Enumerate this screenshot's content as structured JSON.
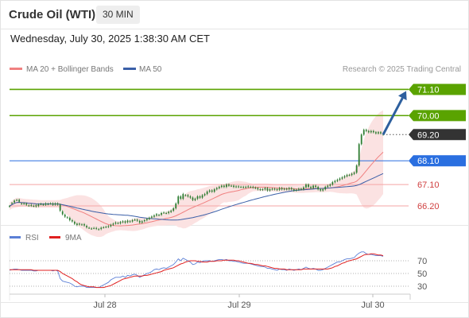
{
  "header": {
    "title": "Crude Oil (WTI)",
    "timeframe": "30 MIN"
  },
  "timestamp": "Wednesday, July 30, 2025 1:38:30 AM CET",
  "legend": {
    "ma20": "MA 20 + Bollinger Bands",
    "ma50": "MA 50",
    "ma20_color": "#f08080",
    "ma50_color": "#3a5fa8"
  },
  "source": "Research © 2025 Trading Central",
  "colors": {
    "resistance": "#5aa300",
    "support_line": "#f5a5a5",
    "support_text": "#d04040",
    "pivot": "#2a6fe0",
    "last": "#333333",
    "arrow": "#2d5f9e",
    "candle": "#2e7d32",
    "band": "#fbe2e2"
  },
  "chart_data": [
    {
      "type": "candlestick",
      "title": "Crude Oil (WTI)",
      "x_ticks": [
        "Jul 28",
        "Jul 29",
        "Jul 30"
      ],
      "ylim": [
        65.7,
        71.45
      ],
      "levels": [
        {
          "value": 71.1,
          "label": "71.10",
          "kind": "resistance"
        },
        {
          "value": 70.0,
          "label": "70.00",
          "kind": "resistance"
        },
        {
          "value": 69.2,
          "label": "69.20",
          "kind": "last"
        },
        {
          "value": 68.1,
          "label": "68.10",
          "kind": "pivot"
        },
        {
          "value": 67.1,
          "label": "67.10",
          "kind": "support"
        },
        {
          "value": 66.2,
          "label": "66.20",
          "kind": "support"
        }
      ],
      "close": [
        66.19,
        66.32,
        66.42,
        66.45,
        66.38,
        66.3,
        66.3,
        66.25,
        66.22,
        66.24,
        66.2,
        66.18,
        66.26,
        66.28,
        66.26,
        66.3,
        66.28,
        66.3,
        66.25,
        66.3,
        66.26,
        66.0,
        65.85,
        65.75,
        65.72,
        65.6,
        65.55,
        65.45,
        65.4,
        65.45,
        65.42,
        65.38,
        65.3,
        65.28,
        65.25,
        65.27,
        65.24,
        65.22,
        65.28,
        65.3,
        65.32,
        65.35,
        65.4,
        65.45,
        65.5,
        65.48,
        65.52,
        65.55,
        65.5,
        65.58,
        65.55,
        65.6,
        65.62,
        65.58,
        65.5,
        65.55,
        65.6,
        65.65,
        65.7,
        65.75,
        65.8,
        65.85,
        65.82,
        65.9,
        65.92,
        65.9,
        65.95,
        66.0,
        66.1,
        66.3,
        66.6,
        66.5,
        66.7,
        66.65,
        66.6,
        66.55,
        66.45,
        66.5,
        66.6,
        66.55,
        66.65,
        66.7,
        66.8,
        66.85,
        66.8,
        66.9,
        66.95,
        67.0,
        67.05,
        67.0,
        67.1,
        67.05,
        67.05,
        67.0,
        67.02,
        67.0,
        67.0,
        66.98,
        67.0,
        67.02,
        67.0,
        66.97,
        66.95,
        66.9,
        66.88,
        66.9,
        66.95,
        66.85,
        66.9,
        66.92,
        66.9,
        66.88,
        66.95,
        66.9,
        66.92,
        66.9,
        66.95,
        66.9,
        66.85,
        66.88,
        66.92,
        66.9,
        66.98,
        67.1,
        67.0,
        66.95,
        67.05,
        67.0,
        66.9,
        66.85,
        66.9,
        67.0,
        67.05,
        67.1,
        67.2,
        67.25,
        67.3,
        67.35,
        67.4,
        67.45,
        67.5,
        67.5,
        67.55,
        67.6,
        67.9,
        68.8,
        69.2,
        69.4,
        69.35,
        69.3,
        69.35,
        69.3,
        69.25,
        69.3,
        69.25,
        69.2
      ],
      "open_bias": [
        0,
        0,
        -0.07,
        0,
        0.08,
        0,
        0,
        0.05,
        0,
        -0.03,
        0,
        0.05,
        -0.06,
        0,
        0,
        -0.05,
        0,
        0,
        0.05,
        -0.04,
        0.04,
        0.25,
        0.12,
        0.08,
        0,
        0.1,
        0.05,
        0.08,
        0.05,
        -0.03,
        0,
        0.05,
        0.06,
        0,
        0,
        0,
        0.03,
        0,
        -0.05,
        0,
        0,
        -0.03,
        -0.05,
        -0.04,
        -0.04,
        0,
        -0.05,
        -0.03,
        0.05,
        -0.06,
        0,
        -0.05,
        0,
        0.04,
        0.07,
        -0.05,
        -0.04,
        -0.05,
        -0.05,
        -0.04,
        -0.05,
        -0.05,
        0,
        -0.07,
        0,
        0,
        -0.05,
        -0.05,
        -0.1,
        -0.2,
        -0.3,
        0.1,
        -0.2,
        0,
        0.05,
        0.05,
        0.1,
        -0.05,
        -0.1,
        0.05,
        -0.1,
        -0.05,
        -0.1,
        -0.05,
        0.05,
        -0.1,
        -0.05,
        -0.05,
        -0.05,
        0.05,
        -0.1,
        0.05,
        0,
        0.05,
        -0.02,
        0.02,
        0,
        0.02,
        -0.02,
        -0.02,
        0,
        0.03,
        0.02,
        0.05,
        0.02,
        -0.02,
        -0.05,
        0.1,
        -0.05,
        -0.02,
        0.02,
        0.02,
        -0.07,
        0.05,
        -0.02,
        0.02,
        -0.05,
        0.05,
        0.05,
        -0.03,
        -0.04,
        0.02,
        -0.08,
        -0.12,
        0.1,
        0.05,
        -0.1,
        0.05,
        0.1,
        0.05,
        -0.05,
        -0.1,
        -0.05,
        -0.05,
        -0.1,
        -0.05,
        -0.05,
        -0.05,
        -0.05,
        -0.05,
        -0.05,
        0,
        -0.05,
        -0.05,
        -0.3,
        -0.9,
        -0.4,
        -0.2,
        0.05,
        0.05,
        -0.05,
        0.05,
        0.05,
        -0.05,
        0.05,
        0.05
      ]
    },
    {
      "type": "line",
      "title": "RSI",
      "legend": [
        "RSI",
        "9MA"
      ],
      "y_ticks": [
        70,
        50,
        30
      ],
      "ylim": [
        20,
        90
      ],
      "rsi": [
        55,
        56,
        57,
        57,
        56,
        55,
        55,
        55,
        55,
        55,
        54,
        54,
        55,
        55,
        55,
        55,
        55,
        55,
        54,
        55,
        54,
        42,
        38,
        37,
        36,
        35,
        33,
        30,
        29,
        30,
        30,
        30,
        28,
        28,
        28,
        28,
        28,
        28,
        30,
        32,
        34,
        36,
        40,
        42,
        44,
        44,
        44,
        46,
        44,
        47,
        46,
        48,
        49,
        47,
        44,
        46,
        48,
        50,
        51,
        53,
        56,
        57,
        56,
        58,
        59,
        58,
        60,
        62,
        64,
        68,
        73,
        70,
        74,
        72,
        70,
        68,
        64,
        65,
        68,
        67,
        69,
        70,
        70,
        70,
        69,
        70,
        71,
        72,
        72,
        71,
        72,
        70,
        70,
        69,
        69,
        68,
        67,
        66,
        66,
        66,
        65,
        64,
        63,
        62,
        61,
        61,
        60,
        58,
        58,
        57,
        56,
        55,
        57,
        56,
        56,
        55,
        57,
        56,
        55,
        56,
        57,
        56,
        58,
        60,
        58,
        57,
        58,
        57,
        55,
        55,
        56,
        58,
        60,
        62,
        64,
        66,
        68,
        68,
        70,
        72,
        73,
        73,
        74,
        75,
        79,
        82,
        84,
        84,
        81,
        80,
        80,
        79,
        78,
        78,
        78,
        77
      ],
      "ma9": [
        56,
        56,
        56,
        56,
        56,
        56,
        56,
        56,
        56,
        56,
        55,
        55,
        55,
        55,
        55,
        55,
        55,
        55,
        55,
        55,
        55,
        53,
        50,
        48,
        46,
        44,
        42,
        39,
        37,
        34,
        32,
        31,
        30,
        29,
        29,
        29,
        28,
        28,
        28,
        28,
        29,
        30,
        31,
        33,
        35,
        37,
        39,
        41,
        42,
        43,
        44,
        45,
        46,
        46,
        46,
        46,
        47,
        47,
        48,
        49,
        50,
        51,
        52,
        53,
        55,
        56,
        57,
        58,
        59,
        61,
        63,
        65,
        66,
        68,
        69,
        70,
        70,
        70,
        69,
        69,
        68,
        68,
        68,
        69,
        69,
        69,
        70,
        70,
        70,
        71,
        71,
        71,
        71,
        71,
        70,
        70,
        69,
        68,
        67,
        66,
        66,
        65,
        64,
        64,
        63,
        62,
        62,
        61,
        60,
        59,
        58,
        58,
        57,
        57,
        57,
        56,
        56,
        56,
        56,
        56,
        56,
        56,
        57,
        57,
        57,
        57,
        57,
        57,
        57,
        57,
        57,
        57,
        57,
        58,
        59,
        61,
        62,
        64,
        66,
        67,
        69,
        70,
        71,
        72,
        73,
        75,
        77,
        79,
        80,
        80,
        81,
        81,
        80,
        79,
        79,
        78
      ]
    }
  ]
}
